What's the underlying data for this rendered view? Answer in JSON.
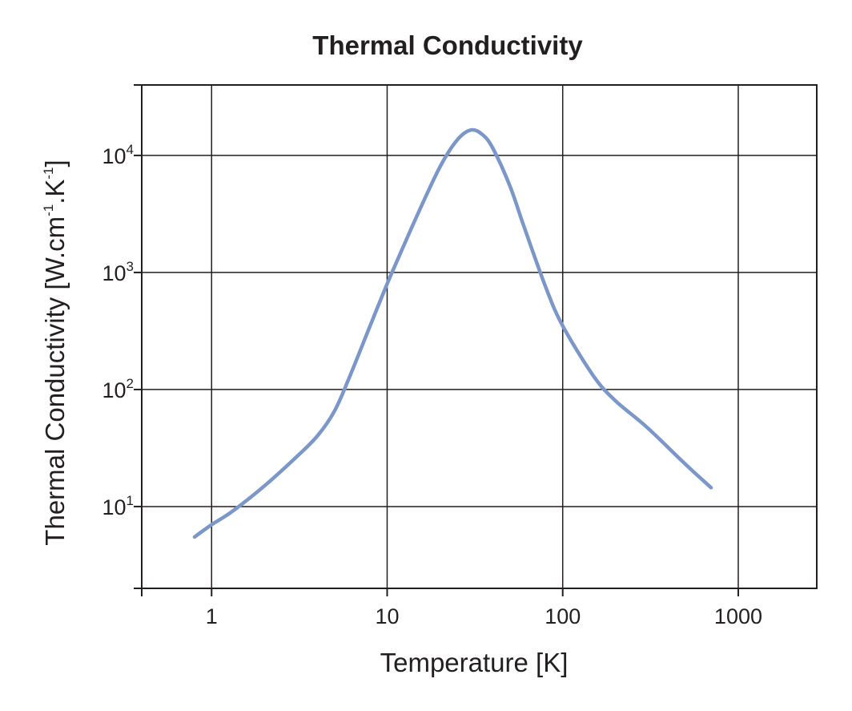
{
  "chart_data": {
    "type": "line",
    "title": "Thermal Conductivity",
    "xlabel": "Temperature [K]",
    "ylabel_parts": {
      "pre": "Thermal Conductivity [W.cm",
      "sup1": "-1",
      "mid": ".K",
      "sup2": "-1",
      "post": "]"
    },
    "x_scale": "log",
    "y_scale": "log",
    "xlim": [
      0.4,
      2800
    ],
    "ylim": [
      2,
      40000
    ],
    "grid": true,
    "x_ticks": [
      {
        "value": 1,
        "label": "1"
      },
      {
        "value": 10,
        "label": "10"
      },
      {
        "value": 100,
        "label": "100"
      },
      {
        "value": 1000,
        "label": "1000"
      }
    ],
    "y_ticks": [
      {
        "value": 10,
        "base": "10",
        "exp": "1"
      },
      {
        "value": 100,
        "base": "10",
        "exp": "2"
      },
      {
        "value": 1000,
        "base": "10",
        "exp": "3"
      },
      {
        "value": 10000,
        "base": "10",
        "exp": "4"
      }
    ],
    "line_color": "#7b96c8",
    "axis_color": "#231f20",
    "series": [
      {
        "x": [
          0.8,
          1,
          1.3,
          2,
          3,
          4,
          5,
          6,
          8,
          10,
          12,
          15,
          20,
          25,
          30,
          35,
          40,
          50,
          60,
          80,
          100,
          150,
          200,
          300,
          500,
          700
        ],
        "y": [
          5.5,
          7,
          9,
          15,
          26,
          40,
          65,
          120,
          350,
          800,
          1500,
          3200,
          8000,
          13500,
          16500,
          15000,
          11500,
          5500,
          2500,
          750,
          350,
          130,
          80,
          48,
          23,
          14.5
        ]
      }
    ]
  }
}
